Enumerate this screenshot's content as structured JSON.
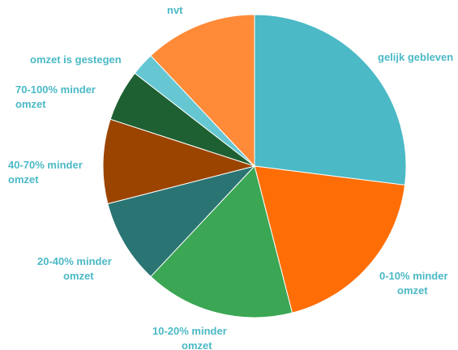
{
  "chart_data": {
    "type": "pie",
    "title": "",
    "start": "12 o'clock",
    "direction": "clockwise",
    "slices": [
      {
        "label": "gelijk gebleven",
        "value": 27.0,
        "color": "#4BB9C6"
      },
      {
        "label": "0-10% minder omzet",
        "value": 19.0,
        "color": "#FF6E06"
      },
      {
        "label": "10-20% minder omzet",
        "value": 16.0,
        "color": "#3BA653"
      },
      {
        "label": "20-40% minder omzet",
        "value": 9.0,
        "color": "#2A7474"
      },
      {
        "label": "40-70% minder omzet",
        "value": 9.0,
        "color": "#9B4400"
      },
      {
        "label": "70-100% minder omzet",
        "value": 5.5,
        "color": "#1F6032"
      },
      {
        "label": "omzet is gestegen",
        "value": 2.5,
        "color": "#66C7D2"
      },
      {
        "label": "nvt",
        "value": 12.0,
        "color": "#FF8A38"
      }
    ],
    "label_color": "#4BB9C6",
    "slice_border_color": "#ffffff"
  }
}
